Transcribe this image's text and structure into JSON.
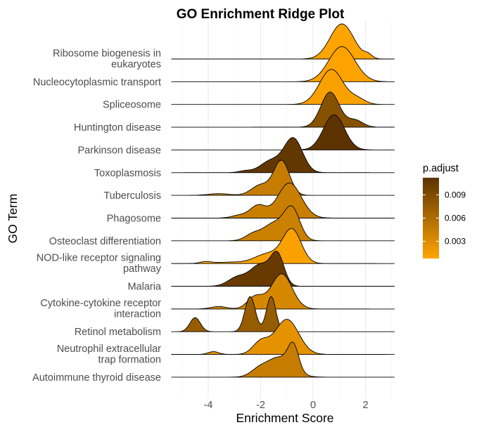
{
  "chart_data": {
    "type": "ridgeline",
    "title": "GO Enrichment Ridge Plot",
    "xlabel": "Enrichment Score",
    "ylabel": "GO Term",
    "xlim": [
      -5.4,
      3.1
    ],
    "xticks": [
      -4,
      -2,
      0,
      2
    ],
    "xtick_labels": [
      "-4",
      "-2",
      "0",
      "2"
    ],
    "grid": "vertical major and minor",
    "color_scale": {
      "name": "p.adjust",
      "low_color": "#ffa500",
      "high_color": "#5c3300",
      "range": [
        0.0008,
        0.0112
      ],
      "ticks": [
        0.003,
        0.006,
        0.009
      ],
      "tick_labels": [
        "0.003",
        "0.006",
        "0.009"
      ],
      "legend_position": "right"
    },
    "series": [
      {
        "label": "Ribosome biogenesis in\neukaryotes",
        "p_adjust": 0.0009,
        "components": [
          [
            1.1,
            0.45,
            1.0
          ],
          [
            2.1,
            0.15,
            0.1
          ]
        ]
      },
      {
        "label": "Nucleocytoplasmic transport",
        "p_adjust": 0.001,
        "components": [
          [
            1.1,
            0.5,
            1.0
          ]
        ]
      },
      {
        "label": "Spliceosome",
        "p_adjust": 0.0012,
        "components": [
          [
            0.7,
            0.45,
            1.0
          ],
          [
            1.7,
            0.3,
            0.15
          ]
        ]
      },
      {
        "label": "Huntington disease",
        "p_adjust": 0.0085,
        "components": [
          [
            0.65,
            0.35,
            1.0
          ],
          [
            1.6,
            0.3,
            0.2
          ]
        ]
      },
      {
        "label": "Parkinson disease",
        "p_adjust": 0.0112,
        "components": [
          [
            0.8,
            0.4,
            1.0
          ]
        ]
      },
      {
        "label": "Toxoplasmosis",
        "p_adjust": 0.0108,
        "components": [
          [
            -0.75,
            0.35,
            1.0
          ],
          [
            -1.6,
            0.4,
            0.35
          ],
          [
            -2.6,
            0.25,
            0.05
          ]
        ]
      },
      {
        "label": "Tuberculosis",
        "p_adjust": 0.0045,
        "components": [
          [
            -1.2,
            0.3,
            1.0
          ],
          [
            -2.0,
            0.35,
            0.3
          ],
          [
            -3.6,
            0.4,
            0.05
          ]
        ]
      },
      {
        "label": "Phagosome",
        "p_adjust": 0.0043,
        "components": [
          [
            -0.9,
            0.45,
            1.0
          ],
          [
            -2.1,
            0.3,
            0.35
          ],
          [
            -2.8,
            0.3,
            0.08
          ]
        ]
      },
      {
        "label": "Osteoclast differentiation",
        "p_adjust": 0.0042,
        "components": [
          [
            -0.8,
            0.3,
            1.0
          ],
          [
            -1.5,
            0.4,
            0.55
          ],
          [
            -2.3,
            0.3,
            0.2
          ]
        ]
      },
      {
        "label": "NOD-like receptor signaling\npathway",
        "p_adjust": 0.0012,
        "components": [
          [
            -0.8,
            0.35,
            1.0
          ],
          [
            -1.7,
            0.5,
            0.3
          ],
          [
            -4.1,
            0.2,
            0.05
          ],
          [
            -3.2,
            0.6,
            0.04
          ]
        ]
      },
      {
        "label": "Malaria",
        "p_adjust": 0.0105,
        "components": [
          [
            -1.35,
            0.25,
            1.0
          ],
          [
            -2.0,
            0.4,
            0.75
          ],
          [
            -2.9,
            0.35,
            0.3
          ]
        ]
      },
      {
        "label": "Cytokine-cytokine receptor\ninteraction",
        "p_adjust": 0.0035,
        "components": [
          [
            -1.2,
            0.4,
            1.0
          ],
          [
            -2.2,
            0.3,
            0.35
          ],
          [
            -3.6,
            0.3,
            0.07
          ]
        ]
      },
      {
        "label": "Retinol metabolism",
        "p_adjust": 0.0075,
        "components": [
          [
            -2.4,
            0.2,
            1.0
          ],
          [
            -1.6,
            0.18,
            1.0
          ],
          [
            -4.5,
            0.2,
            0.4
          ]
        ]
      },
      {
        "label": "Neutrophil extracellular\ntrap formation",
        "p_adjust": 0.0025,
        "components": [
          [
            -1.0,
            0.45,
            1.0
          ],
          [
            -2.0,
            0.3,
            0.35
          ],
          [
            -3.8,
            0.2,
            0.08
          ]
        ]
      },
      {
        "label": "Autoimmune thyroid disease",
        "p_adjust": 0.0045,
        "components": [
          [
            -0.75,
            0.2,
            0.9
          ],
          [
            -1.3,
            0.5,
            0.75
          ],
          [
            -2.1,
            0.3,
            0.2
          ]
        ]
      }
    ]
  }
}
